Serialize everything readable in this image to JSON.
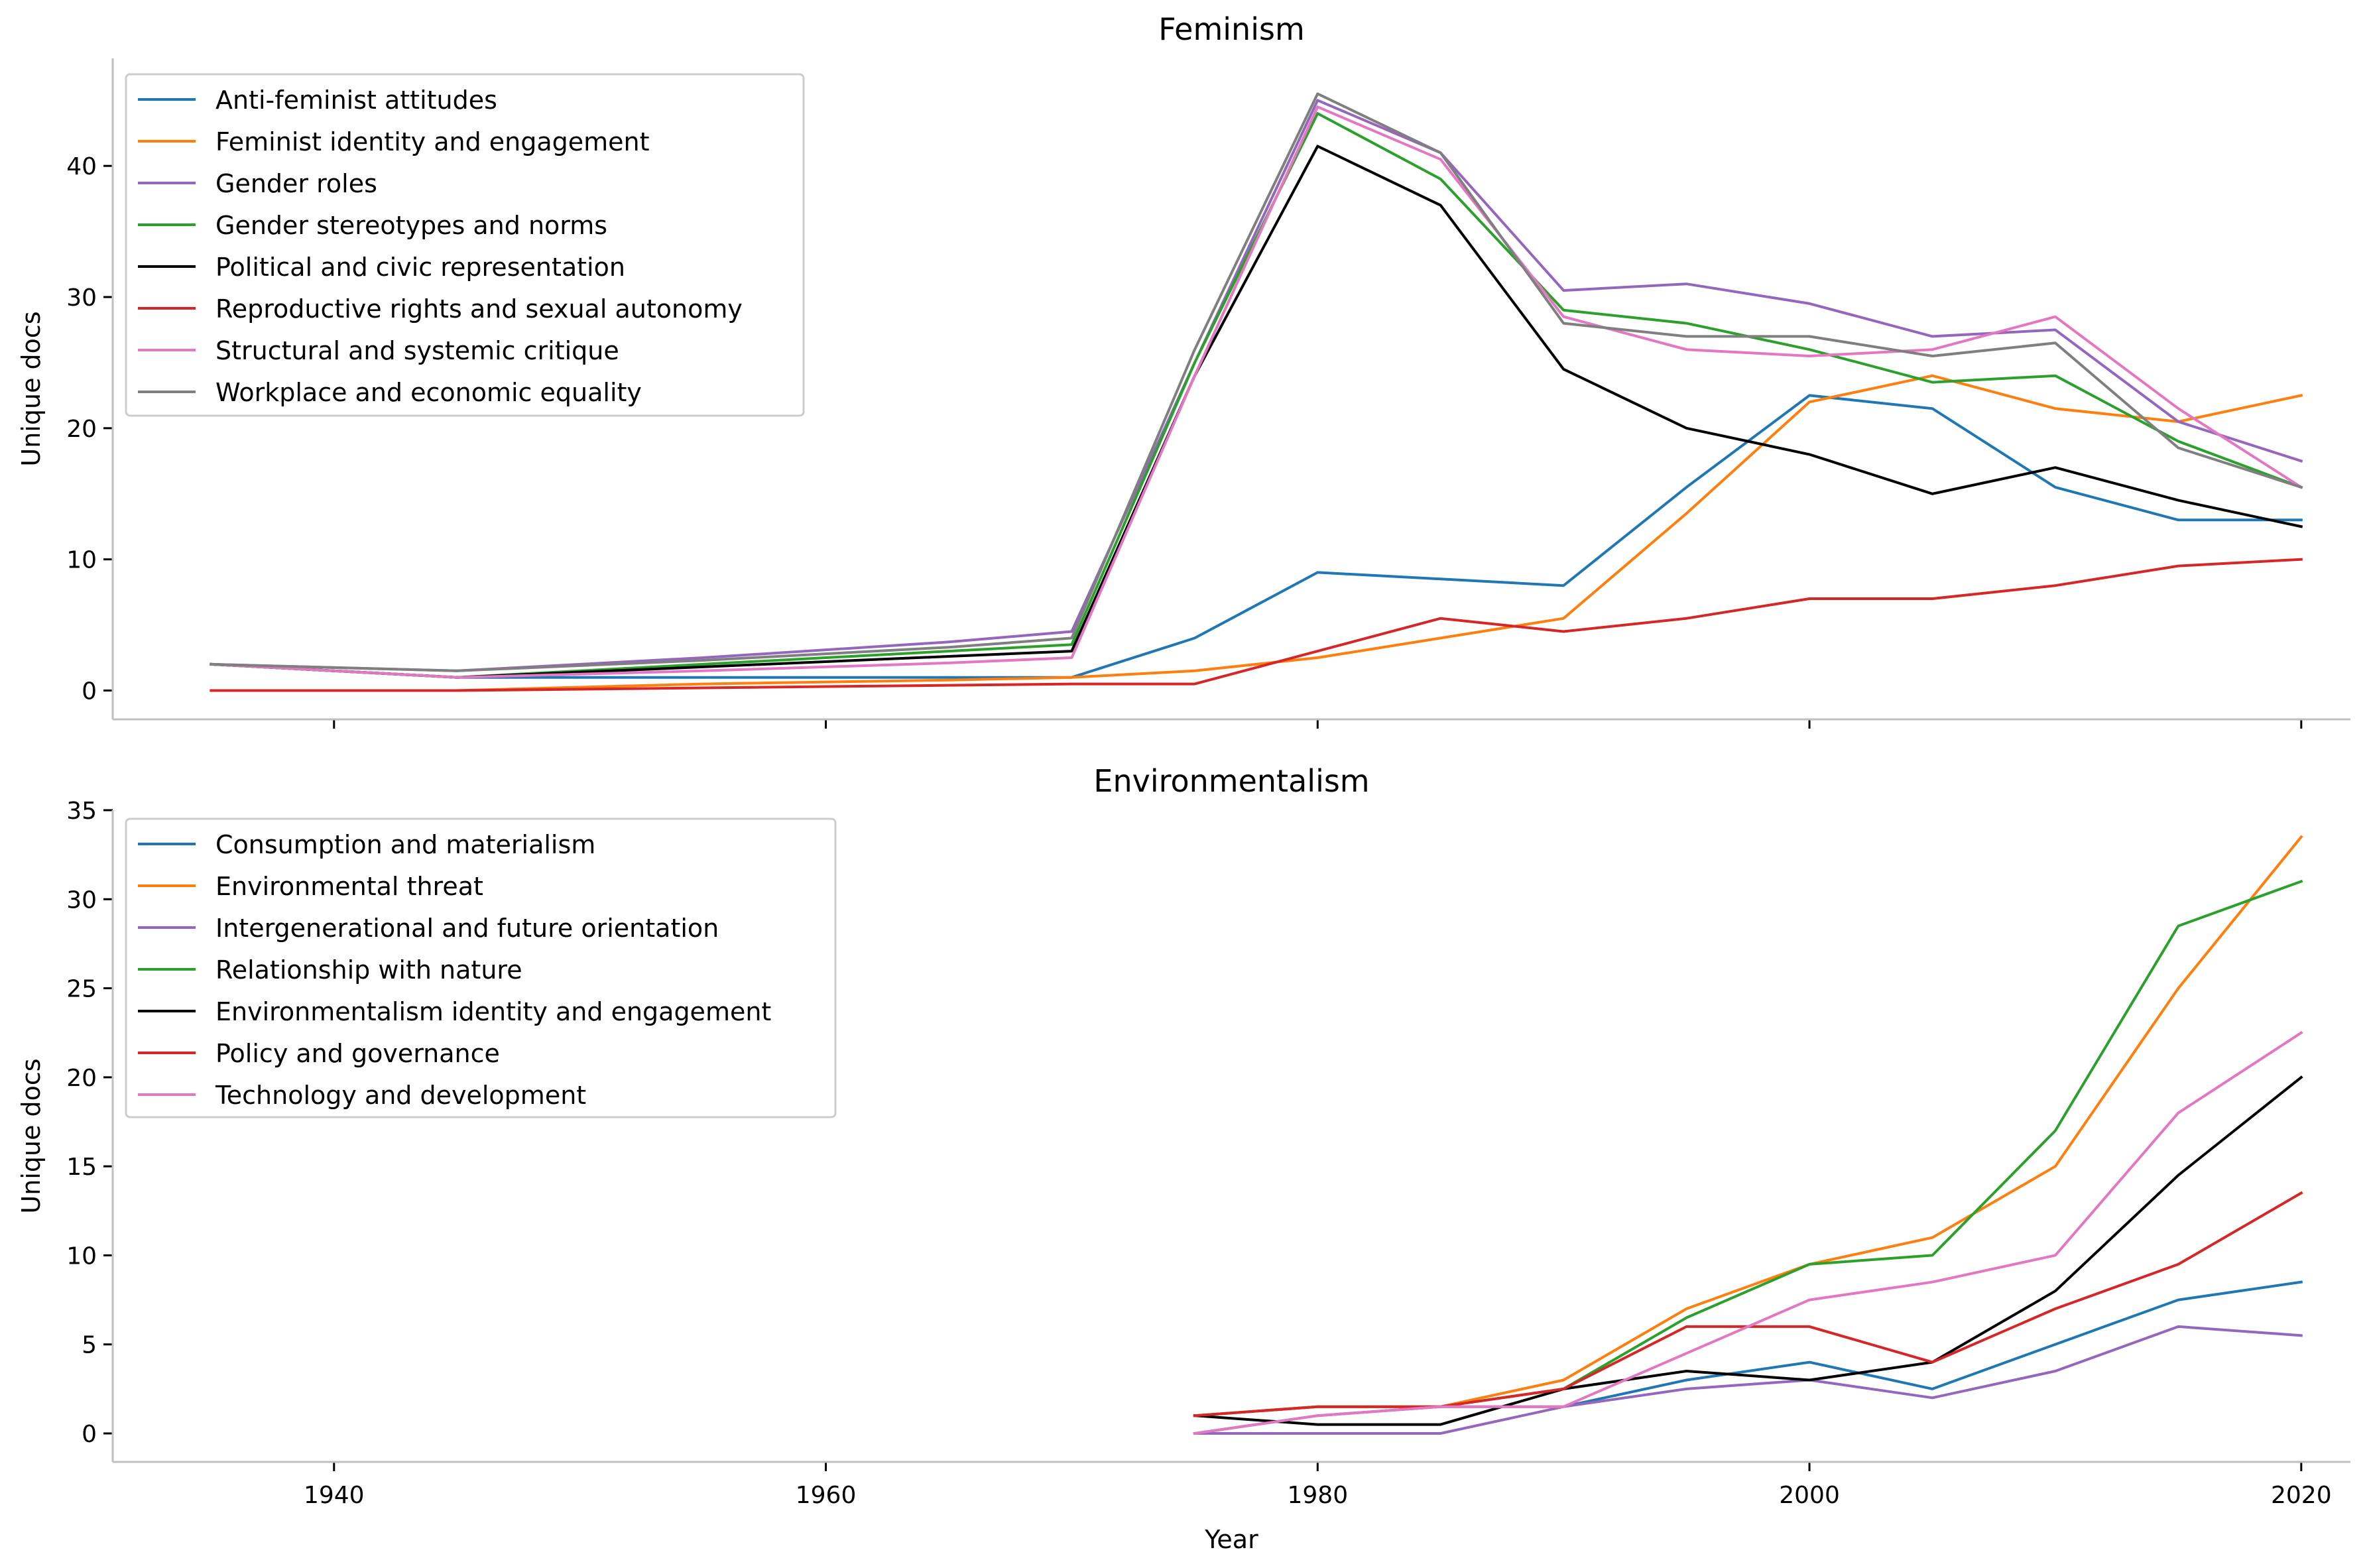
{
  "figure": {
    "xlabel": "Year"
  },
  "chart_data": [
    {
      "type": "line",
      "title": "Feminism",
      "xlabel": "",
      "ylabel": "Unique docs",
      "xlim": [
        1931,
        2022
      ],
      "ylim": [
        -2.2,
        48.2
      ],
      "xticks": [
        1940,
        1960,
        1980,
        2000,
        2020
      ],
      "yticks": [
        0,
        10,
        20,
        30,
        40
      ],
      "show_xtick_labels": false,
      "grid": false,
      "legend_position": "upper-left",
      "series": [
        {
          "name": "Anti-feminist attitudes",
          "color": "#1f77b4",
          "x": [
            1935,
            1945,
            1955,
            1965,
            1970,
            1975,
            1980,
            1985,
            1990,
            1995,
            2000,
            2005,
            2010,
            2015,
            2020
          ],
          "y": [
            2,
            1,
            1,
            1,
            1,
            4,
            9,
            8.5,
            8,
            15.5,
            22.5,
            21.5,
            15.5,
            13,
            13
          ]
        },
        {
          "name": "Feminist identity and engagement",
          "color": "#ff7f0e",
          "x": [
            1935,
            1945,
            1955,
            1965,
            1970,
            1975,
            1980,
            1985,
            1990,
            1995,
            2000,
            2005,
            2010,
            2015,
            2020
          ],
          "y": [
            0,
            0,
            0.5,
            0.8,
            1,
            1.5,
            2.5,
            4,
            5.5,
            13.5,
            22,
            24,
            21.5,
            20.5,
            22.5
          ]
        },
        {
          "name": "Gender roles",
          "color": "#9467bd",
          "x": [
            1935,
            1945,
            1955,
            1965,
            1970,
            1975,
            1980,
            1985,
            1990,
            1995,
            2000,
            2005,
            2010,
            2015,
            2020
          ],
          "y": [
            2,
            1.5,
            2.5,
            3.7,
            4.5,
            25,
            45,
            41,
            30.5,
            31,
            29.5,
            27,
            27.5,
            20.5,
            17.5
          ]
        },
        {
          "name": "Gender stereotypes and norms",
          "color": "#2ca02c",
          "x": [
            1935,
            1945,
            1955,
            1965,
            1970,
            1975,
            1980,
            1985,
            1990,
            1995,
            2000,
            2005,
            2010,
            2015,
            2020
          ],
          "y": [
            2,
            1,
            2,
            3,
            3.5,
            25,
            44,
            39,
            29,
            28,
            26,
            23.5,
            24,
            19,
            15.5
          ]
        },
        {
          "name": "Political and civic representation",
          "color": "#000000",
          "x": [
            1935,
            1945,
            1955,
            1965,
            1970,
            1975,
            1980,
            1985,
            1990,
            1995,
            2000,
            2005,
            2010,
            2015,
            2020
          ],
          "y": [
            2,
            1,
            1.8,
            2.6,
            3,
            24,
            41.5,
            37,
            24.5,
            20,
            18,
            15,
            17,
            14.5,
            12.5
          ]
        },
        {
          "name": "Reproductive rights and sexual autonomy",
          "color": "#d62728",
          "x": [
            1935,
            1945,
            1955,
            1965,
            1970,
            1975,
            1980,
            1985,
            1990,
            1995,
            2000,
            2005,
            2010,
            2015,
            2020
          ],
          "y": [
            0,
            0,
            0.2,
            0.4,
            0.5,
            0.5,
            3,
            5.5,
            4.5,
            5.5,
            7,
            7,
            8,
            9.5,
            10
          ]
        },
        {
          "name": "Structural and systemic critique",
          "color": "#e377c2",
          "x": [
            1935,
            1945,
            1955,
            1965,
            1970,
            1975,
            1980,
            1985,
            1990,
            1995,
            2000,
            2005,
            2010,
            2015,
            2020
          ],
          "y": [
            2,
            1,
            1.5,
            2.1,
            2.5,
            24,
            44.5,
            40.5,
            28.5,
            26,
            25.5,
            26,
            28.5,
            21.5,
            15.5
          ]
        },
        {
          "name": "Workplace and economic equality",
          "color": "#7f7f7f",
          "x": [
            1935,
            1945,
            1955,
            1965,
            1970,
            1975,
            1980,
            1985,
            1990,
            1995,
            2000,
            2005,
            2010,
            2015,
            2020
          ],
          "y": [
            2,
            1.5,
            2.3,
            3.3,
            4,
            26,
            45.5,
            41,
            28,
            27,
            27,
            25.5,
            26.5,
            18.5,
            15.5
          ]
        }
      ]
    },
    {
      "type": "line",
      "title": "Environmentalism",
      "xlabel": "Year",
      "ylabel": "Unique docs",
      "xlim": [
        1931,
        2022
      ],
      "ylim": [
        -1.6,
        35.0
      ],
      "xticks": [
        1940,
        1960,
        1980,
        2000,
        2020
      ],
      "yticks": [
        0,
        5,
        10,
        15,
        20,
        25,
        30,
        35
      ],
      "show_xtick_labels": true,
      "grid": false,
      "legend_position": "upper-left",
      "series": [
        {
          "name": "Consumption and materialism",
          "color": "#1f77b4",
          "x": [
            1975,
            1980,
            1985,
            1990,
            1995,
            2000,
            2005,
            2010,
            2015,
            2020
          ],
          "y": [
            0,
            1,
            1.5,
            1.5,
            3,
            4,
            2.5,
            5,
            7.5,
            8.5
          ]
        },
        {
          "name": "Environmental threat",
          "color": "#ff7f0e",
          "x": [
            1975,
            1980,
            1985,
            1990,
            1995,
            2000,
            2005,
            2010,
            2015,
            2020
          ],
          "y": [
            1,
            1.5,
            1.5,
            3,
            7,
            9.5,
            11,
            15,
            25,
            33.5
          ]
        },
        {
          "name": "Intergenerational and future orientation",
          "color": "#9467bd",
          "x": [
            1975,
            1980,
            1985,
            1990,
            1995,
            2000,
            2005,
            2010,
            2015,
            2020
          ],
          "y": [
            0,
            0,
            0,
            1.5,
            2.5,
            3,
            2,
            3.5,
            6,
            5.5
          ]
        },
        {
          "name": "Relationship with nature",
          "color": "#2ca02c",
          "x": [
            1975,
            1980,
            1985,
            1990,
            1995,
            2000,
            2005,
            2010,
            2015,
            2020
          ],
          "y": [
            1,
            1.5,
            1.5,
            2.5,
            6.5,
            9.5,
            10,
            17,
            28.5,
            31
          ]
        },
        {
          "name": "Environmentalism identity and engagement",
          "color": "#000000",
          "x": [
            1975,
            1980,
            1985,
            1990,
            1995,
            2000,
            2005,
            2010,
            2015,
            2020
          ],
          "y": [
            1,
            0.5,
            0.5,
            2.5,
            3.5,
            3,
            4,
            8,
            14.5,
            20
          ]
        },
        {
          "name": "Policy and governance",
          "color": "#d62728",
          "x": [
            1975,
            1980,
            1985,
            1990,
            1995,
            2000,
            2005,
            2010,
            2015,
            2020
          ],
          "y": [
            1,
            1.5,
            1.5,
            2.5,
            6,
            6,
            4,
            7,
            9.5,
            13.5
          ]
        },
        {
          "name": "Technology and development",
          "color": "#e377c2",
          "x": [
            1975,
            1980,
            1985,
            1990,
            1995,
            2000,
            2005,
            2010,
            2015,
            2020
          ],
          "y": [
            0,
            1,
            1.5,
            1.5,
            4.5,
            7.5,
            8.5,
            10,
            18,
            22.5
          ]
        }
      ]
    }
  ]
}
